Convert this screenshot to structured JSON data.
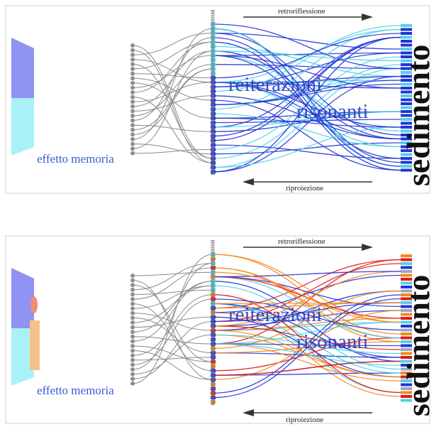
{
  "panels": [
    {
      "arrow_top_label": "retroriflessione",
      "arrow_bottom_label": "riproiezione",
      "memory_label": "effetto memoria",
      "word_1": "reiterazioni",
      "word_2": "risonanti",
      "vertical_word": "sedimento"
    },
    {
      "arrow_top_label": "retroriflessione",
      "arrow_bottom_label": "riproiezione",
      "memory_label": "effetto memoria",
      "word_1": "reiterazioni",
      "word_2": "risonanti",
      "vertical_word": "sedimento"
    }
  ],
  "colors": {
    "grey_strand": "#8a8a8a",
    "blue_strand": "#2433d6",
    "cyan_strand": "#4fd3e6",
    "orange_strand": "#f28a1e",
    "red_strand": "#e01a1a",
    "screen_blue": "#8f93f2",
    "screen_cyan": "#a8f2f7",
    "peach_block": "#f8c089"
  }
}
